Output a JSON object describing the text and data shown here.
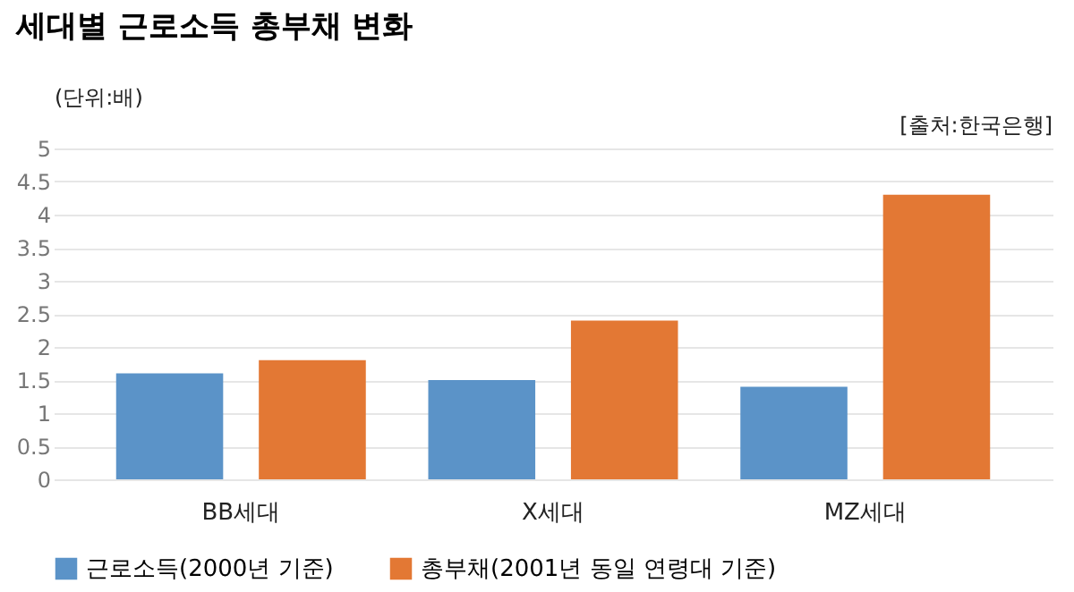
{
  "chart_data": {
    "type": "bar",
    "title": "세대별 근로소득 총부채 변화",
    "ylabel": "(단위:배)",
    "annotations": [
      "[출처:한국은행]"
    ],
    "categories": [
      "BB세대",
      "X세대",
      "MZ세대"
    ],
    "series": [
      {
        "name": "근로소득(2000년 기준)",
        "color": "#5b93c8",
        "values": [
          1.6,
          1.5,
          1.4
        ]
      },
      {
        "name": "총부채(2001년 동일 연령대 기준)",
        "color": "#e37834",
        "values": [
          1.8,
          2.4,
          4.3
        ]
      }
    ],
    "ylim": [
      0,
      5
    ],
    "yticks": [
      0,
      0.5,
      1,
      1.5,
      2,
      2.5,
      3,
      3.5,
      4,
      4.5,
      5
    ],
    "grid": "y",
    "legend": "bottom"
  }
}
